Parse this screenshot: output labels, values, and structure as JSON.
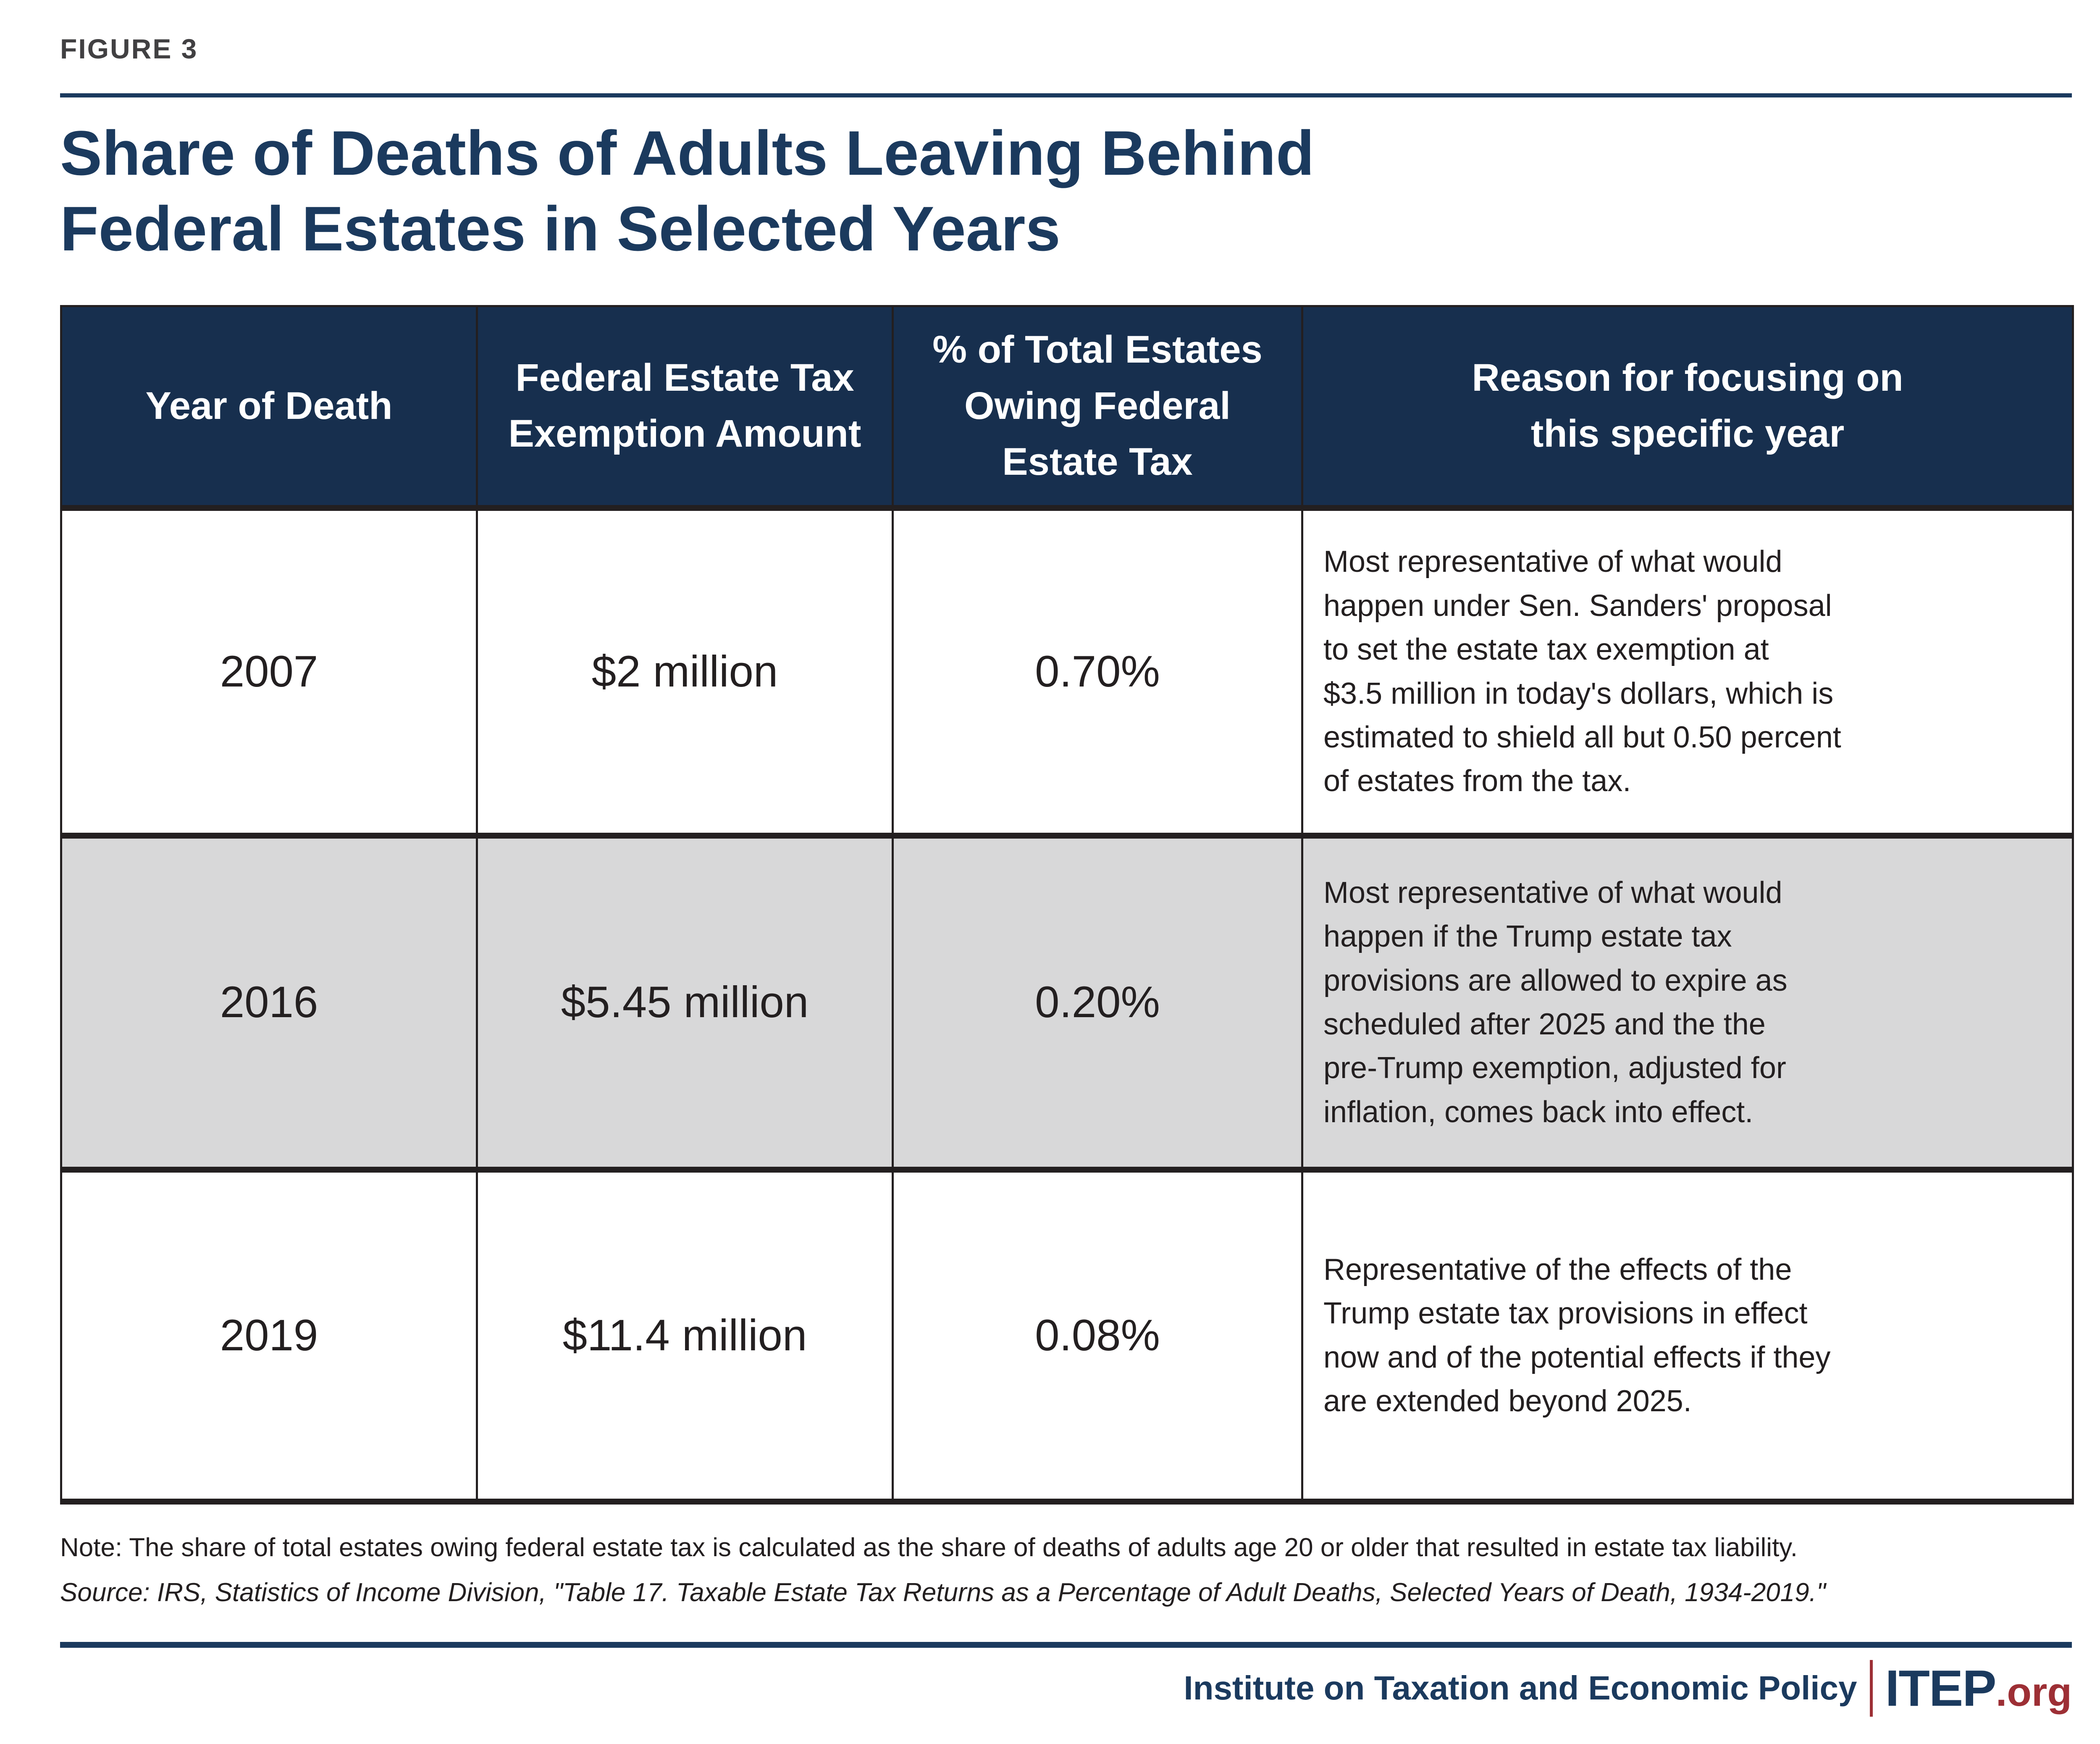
{
  "figure_label": "FIGURE 3",
  "title": "Share of Deaths of Adults Leaving Behind\nFederal Estates in Selected Years",
  "table": {
    "headers": {
      "year": "Year of Death",
      "exemption": "Federal Estate Tax\nExemption Amount",
      "share": "% of Total Estates\nOwing Federal\nEstate Tax",
      "reason": "Reason for focusing on\nthis specific year"
    },
    "rows": [
      {
        "year": "2007",
        "exemption": "$2 million",
        "share": "0.70%",
        "reason": "Most representative of what would\nhappen under Sen. Sanders' proposal\nto set the estate tax exemption at\n$3.5 million in today's dollars, which is\nestimated to shield all but 0.50 percent\nof estates from the tax."
      },
      {
        "year": "2016",
        "exemption": "$5.45 million",
        "share": "0.20%",
        "reason": "Most representative of what would\nhappen if the Trump estate tax\nprovisions are allowed to expire as\nscheduled after 2025 and the the\npre-Trump exemption, adjusted for\ninflation, comes back into effect."
      },
      {
        "year": "2019",
        "exemption": "$11.4 million",
        "share": "0.08%",
        "reason": "Representative of the effects of the\nTrump estate tax provisions in effect\nnow and of the potential effects if they\nare extended beyond 2025."
      }
    ]
  },
  "note": "Note: The share of total estates owing federal estate tax is calculated as the share of deaths of adults age 20 or older that resulted in estate tax liability.",
  "source": "Source: IRS, Statistics of Income Division, \"Table 17. Taxable Estate Tax Returns as a Percentage of Adult Deaths, Selected Years of Death, 1934-2019.\"",
  "footer": {
    "org": "Institute on Taxation and Economic Policy",
    "brand": "ITEP",
    "brand_suffix": ".org"
  },
  "colors": {
    "navy_header": "#172f4e",
    "navy_accent": "#1b3a5e",
    "brand_red": "#9d2f35",
    "row_gray": "#d8d8d9",
    "text": "#231f20",
    "label_gray": "#414042"
  },
  "chart_data": {
    "type": "table",
    "title": "Share of Deaths of Adults Leaving Behind Federal Estates in Selected Years",
    "columns": [
      "Year of Death",
      "Federal Estate Tax Exemption Amount",
      "% of Total Estates Owing Federal Estate Tax",
      "Reason for focusing on this specific year"
    ],
    "rows": [
      [
        "2007",
        "$2 million",
        "0.70%",
        "Most representative of what would happen under Sen. Sanders' proposal to set the estate tax exemption at $3.5 million in today's dollars, which is estimated to shield all but 0.50 percent of estates from the tax."
      ],
      [
        "2016",
        "$5.45 million",
        "0.20%",
        "Most representative of what would happen if the Trump estate tax provisions are allowed to expire as scheduled after 2025 and the the pre-Trump exemption, adjusted for inflation, comes back into effect."
      ],
      [
        "2019",
        "$11.4 million",
        "0.08%",
        "Representative of the effects of the Trump estate tax provisions in effect now and of the potential effects if they are extended beyond 2025."
      ]
    ],
    "exemption_values_usd_million": [
      2,
      5.45,
      11.4
    ],
    "share_owing_percent": [
      0.7,
      0.2,
      0.08
    ]
  }
}
